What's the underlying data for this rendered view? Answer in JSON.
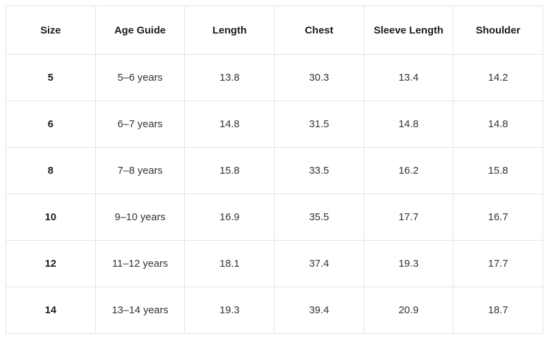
{
  "chart_data": {
    "type": "table",
    "columns": [
      "Size",
      "Age Guide",
      "Length",
      "Chest",
      "Sleeve Length",
      "Shoulder"
    ],
    "rows": [
      [
        "5",
        "5–6 years",
        "13.8",
        "30.3",
        "13.4",
        "14.2"
      ],
      [
        "6",
        "6–7 years",
        "14.8",
        "31.5",
        "14.8",
        "14.8"
      ],
      [
        "8",
        "7–8 years",
        "15.8",
        "33.5",
        "16.2",
        "15.8"
      ],
      [
        "10",
        "9–10 years",
        "16.9",
        "35.5",
        "17.7",
        "16.7"
      ],
      [
        "12",
        "11–12 years",
        "18.1",
        "37.4",
        "19.3",
        "17.7"
      ],
      [
        "14",
        "13–14 years",
        "19.3",
        "39.4",
        "20.9",
        "18.7"
      ]
    ],
    "layout": {
      "header_bold": true,
      "first_column_bold": true,
      "grid": "full"
    },
    "colors": {
      "background": "#ffffff",
      "border": "#e2e2e2",
      "header_text": "#1a1a1a",
      "body_text": "#333333"
    }
  }
}
